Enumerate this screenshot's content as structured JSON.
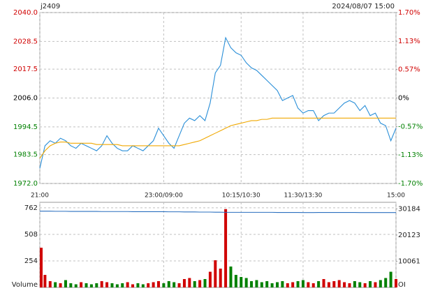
{
  "chart_data": [
    {
      "type": "line",
      "title": "j2409",
      "subtitle": "2024/08/07 15:00",
      "up_color": "#d00000",
      "down_color": "#008000",
      "x": [
        0,
        5,
        10,
        15,
        20,
        25,
        30,
        35,
        40,
        45,
        50,
        55,
        60,
        65,
        70,
        75,
        80,
        85,
        90,
        95,
        100,
        105,
        110,
        115,
        120,
        125,
        130,
        135,
        140,
        145,
        150,
        155,
        160,
        165,
        170,
        175,
        180,
        185,
        190,
        195,
        200,
        205,
        210,
        215,
        220,
        225,
        230,
        235,
        240,
        245,
        250,
        255,
        260,
        265,
        270,
        275,
        280,
        285,
        290,
        295,
        300,
        305,
        310,
        315,
        320,
        325,
        330,
        335,
        340,
        345
      ],
      "xlim": [
        0,
        345
      ],
      "xticks": [
        {
          "value": 0,
          "label": "21:00"
        },
        {
          "value": 120,
          "label": "23:00/09:00"
        },
        {
          "value": 195,
          "label": "10:15/10:30"
        },
        {
          "value": 255,
          "label": "11:30/13:30"
        },
        {
          "value": 345,
          "label": "15:00"
        }
      ],
      "ylim": [
        1972,
        2040
      ],
      "yticks": [
        {
          "value": 1972,
          "label": "1972.0"
        },
        {
          "value": 1983.5,
          "label": "1983.5"
        },
        1994.5,
        {
          "value": 2006,
          "label": "2006.0"
        },
        2017.5,
        2028.5,
        {
          "value": 2040,
          "label": "2040.0"
        }
      ],
      "y2lim": [
        -1.7,
        1.7
      ],
      "y2ticks": [
        {
          "value": -1.7,
          "label": "-1.70%"
        },
        {
          "value": -1.13,
          "label": "-1.13%"
        },
        {
          "value": -0.57,
          "label": "-0.57%"
        },
        {
          "value": 0,
          "label": "0%"
        },
        {
          "value": 0.57,
          "label": "0.57%"
        },
        {
          "value": 1.13,
          "label": "1.13%"
        },
        {
          "value": 1.7,
          "label": "1.70%"
        }
      ],
      "grid": true,
      "series": [
        {
          "color": "#2a8fd8",
          "values": [
            1978,
            1987,
            1989,
            1988,
            1990,
            1989,
            1987,
            1986,
            1988,
            1987,
            1986,
            1985,
            1987,
            1991,
            1988,
            1986,
            1985,
            1985,
            1987,
            1986,
            1985,
            1987,
            1989,
            1994,
            1991,
            1988,
            1986,
            1991,
            1996,
            1998,
            1997,
            1999,
            1997,
            2004,
            2016,
            2019,
            2030,
            2026,
            2024,
            2023,
            2020,
            2018,
            2017,
            2015,
            2013,
            2011,
            2009,
            2005,
            2006,
            2007,
            2002,
            2000,
            2001,
            2001,
            1997,
            1999,
            2000,
            2000,
            2002,
            2004,
            2005,
            2004,
            2001,
            2003,
            1999,
            2000,
            1996,
            1995,
            1989,
            1994
          ]
        },
        {
          "color": "#f0a800",
          "values": [
            1982,
            1985,
            1987,
            1988,
            1988.5,
            1988.5,
            1988,
            1988,
            1988,
            1988,
            1988,
            1987.5,
            1987.5,
            1987.5,
            1987.5,
            1987.5,
            1987,
            1987,
            1987,
            1987,
            1987,
            1987,
            1987,
            1987,
            1987,
            1987,
            1987,
            1987,
            1987.5,
            1988,
            1988.5,
            1989,
            1990,
            1991,
            1992,
            1993,
            1994,
            1995,
            1995.5,
            1996,
            1996.5,
            1997,
            1997,
            1997.5,
            1997.5,
            1998,
            1998,
            1998,
            1998,
            1998,
            1998,
            1998,
            1998,
            1998,
            1998,
            1998,
            1998,
            1998,
            1998,
            1998,
            1998,
            1998,
            1998,
            1998,
            1998,
            1998,
            1998,
            1998,
            1998,
            1998
          ]
        }
      ]
    },
    {
      "type": "bar",
      "x": [
        0,
        5,
        10,
        15,
        20,
        25,
        30,
        35,
        40,
        45,
        50,
        55,
        60,
        65,
        70,
        75,
        80,
        85,
        90,
        95,
        100,
        105,
        110,
        115,
        120,
        125,
        130,
        135,
        140,
        145,
        150,
        155,
        160,
        165,
        170,
        175,
        180,
        185,
        190,
        195,
        200,
        205,
        210,
        215,
        220,
        225,
        230,
        235,
        240,
        245,
        250,
        255,
        260,
        265,
        270,
        275,
        280,
        285,
        290,
        295,
        300,
        305,
        310,
        315,
        320,
        325,
        330,
        335,
        340,
        345
      ],
      "xlim": [
        0,
        345
      ],
      "ylim": [
        0,
        815
      ],
      "yticks": [
        254,
        508,
        762
      ],
      "y2lim": [
        0,
        32700
      ],
      "y2ticks": [
        10061,
        20123,
        30184
      ],
      "grid": true,
      "series": [
        {
          "name": "Volume",
          "values": [
            380,
            120,
            60,
            50,
            40,
            70,
            40,
            30,
            50,
            40,
            30,
            40,
            60,
            50,
            40,
            30,
            40,
            50,
            30,
            40,
            30,
            40,
            50,
            60,
            40,
            60,
            50,
            40,
            80,
            90,
            60,
            70,
            80,
            150,
            260,
            180,
            750,
            200,
            120,
            100,
            90,
            60,
            70,
            50,
            60,
            40,
            50,
            60,
            40,
            50,
            60,
            70,
            50,
            40,
            60,
            80,
            50,
            60,
            70,
            50,
            40,
            60,
            50,
            40,
            60,
            50,
            70,
            90,
            150,
            80
          ]
        },
        {
          "name": "OI",
          "axis": "y2",
          "color": "#2a6fbf",
          "values": [
            29300,
            29300,
            29300,
            29250,
            29250,
            29250,
            29200,
            29200,
            29200,
            29200,
            29200,
            29200,
            29150,
            29150,
            29150,
            29150,
            29150,
            29150,
            29100,
            29100,
            29100,
            29100,
            29100,
            29100,
            29100,
            29050,
            29050,
            29050,
            29000,
            29000,
            29000,
            28950,
            28950,
            28950,
            28900,
            28900,
            28850,
            28850,
            28850,
            28850,
            28850,
            28850,
            28850,
            28850,
            28850,
            28850,
            28800,
            28800,
            28800,
            28800,
            28800,
            28750,
            28750,
            28750,
            28800,
            28800,
            28800,
            28800,
            28800,
            28800,
            28800,
            28800,
            28750,
            28750,
            28750,
            28750,
            28750,
            28750,
            28750,
            28750
          ]
        }
      ]
    }
  ]
}
